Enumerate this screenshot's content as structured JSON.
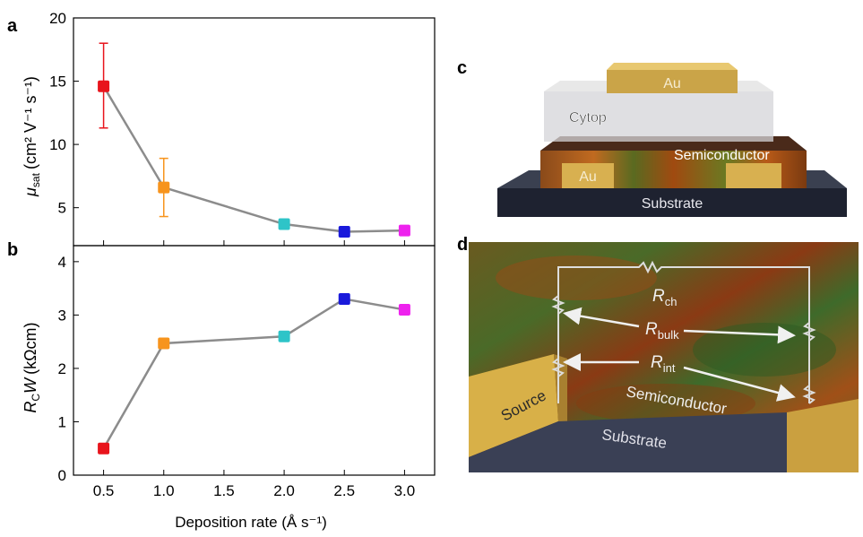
{
  "panels": {
    "a": "a",
    "b": "b",
    "c": "c",
    "d": "d"
  },
  "colors": {
    "line": "#8c8c8c",
    "points": [
      "#e8141c",
      "#f7941d",
      "#2ec4c8",
      "#1a1adb",
      "#ee22ee"
    ]
  },
  "chart_data": [
    {
      "type": "line",
      "panel": "a",
      "title": "",
      "ylabel": "μsat (cm² V⁻¹ s⁻¹)",
      "ylabel_main": "μ",
      "ylabel_sub": "sat",
      "ylabel_units": "(cm² V⁻¹ s⁻¹)",
      "x": [
        0.5,
        1.0,
        2.0,
        2.5,
        3.0
      ],
      "values": [
        14.6,
        6.6,
        3.7,
        3.1,
        3.2
      ],
      "error_low": [
        11.3,
        4.3,
        null,
        null,
        null
      ],
      "error_high": [
        18.0,
        8.9,
        null,
        null,
        null
      ],
      "ylim": [
        2.0,
        20.0
      ],
      "yticks": [
        "5",
        "10",
        "15",
        "20"
      ],
      "ytick_values": [
        5,
        10,
        15,
        20
      ]
    },
    {
      "type": "line",
      "panel": "b",
      "title": "",
      "ylabel": "RCW (kΩcm)",
      "ylabel_main": "R",
      "ylabel_sub": "C",
      "ylabel_w": "W",
      "ylabel_units": "(kΩcm)",
      "x": [
        0.5,
        1.0,
        2.0,
        2.5,
        3.0
      ],
      "x_positions": [
        0.5,
        1.0,
        2.0,
        2.5,
        3.0
      ],
      "values": [
        0.5,
        2.47,
        2.6,
        3.3,
        3.1
      ],
      "ylim": [
        0,
        4.3
      ],
      "yticks": [
        "0",
        "1",
        "2",
        "3",
        "4"
      ],
      "ytick_values": [
        0,
        1,
        2,
        3,
        4
      ],
      "xlabel": "Deposition rate (Å s⁻¹)",
      "xticks": [
        "0.5",
        "1.0",
        "1.5",
        "2.0",
        "2.5",
        "3.0"
      ],
      "xtick_values": [
        0.5,
        1.0,
        1.5,
        2.0,
        2.5,
        3.0
      ],
      "xlim": [
        0.25,
        3.25
      ]
    }
  ],
  "device_c": {
    "au_top": "Au",
    "cytop": "Cytop",
    "semiconductor": "Semiconductor",
    "au_bottom": "Au",
    "substrate": "Substrate"
  },
  "device_d": {
    "r_ch": "R",
    "r_ch_sub": "ch",
    "r_bulk": "R",
    "r_bulk_sub": "bulk",
    "r_int": "R",
    "r_int_sub": "int",
    "source": "Source",
    "semiconductor": "Semiconductor",
    "substrate": "Substrate"
  }
}
